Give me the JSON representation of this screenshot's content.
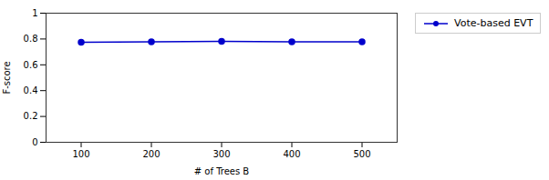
{
  "chart_data": {
    "type": "line",
    "xlabel": "# of Trees B",
    "ylabel": "F-score",
    "x": [
      100,
      200,
      300,
      400,
      500
    ],
    "series": [
      {
        "name": "Vote-based EVT",
        "color": "#0000cc",
        "marker": "o",
        "values": [
          0.775,
          0.778,
          0.782,
          0.778,
          0.778
        ]
      }
    ],
    "xlim": [
      50,
      550
    ],
    "ylim": [
      0,
      1
    ],
    "xticks": [
      100,
      200,
      300,
      400,
      500
    ],
    "yticks": [
      0,
      0.2,
      0.4,
      0.6,
      0.8,
      1
    ],
    "legend": "right"
  }
}
